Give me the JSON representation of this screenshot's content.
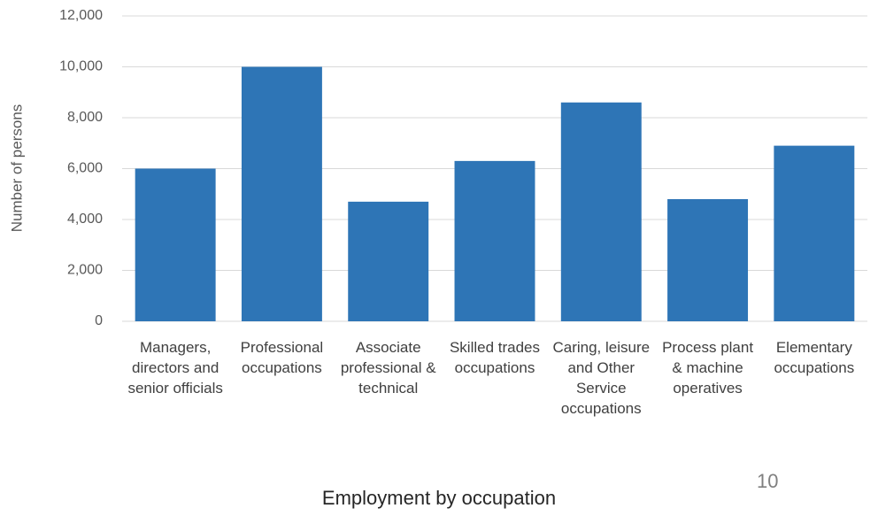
{
  "chart_data": {
    "type": "bar",
    "x_label": "Employment by occupation",
    "y_label": "Number of persons",
    "annotation": "10",
    "categories": [
      "Managers, directors and senior officials",
      "Professional occupations",
      "Associate professional & technical",
      "Skilled trades occupations",
      "Caring, leisure and Other Service occupations",
      "Process plant & machine operatives",
      "Elementary occupations"
    ],
    "values": [
      6000,
      10000,
      4700,
      6300,
      8600,
      4800,
      6900
    ],
    "color": "#2e75b6",
    "ylim": [
      0,
      12000
    ],
    "yticks": [
      0,
      {
        "value": 2000,
        "label": "2,000"
      },
      {
        "value": 4000,
        "label": "4,000"
      },
      {
        "value": 6000,
        "label": "6,000"
      },
      {
        "value": 8000,
        "label": "8,000"
      },
      {
        "value": 10000,
        "label": "10,000"
      },
      {
        "value": 12000,
        "label": "12,000"
      }
    ],
    "grid": true
  }
}
